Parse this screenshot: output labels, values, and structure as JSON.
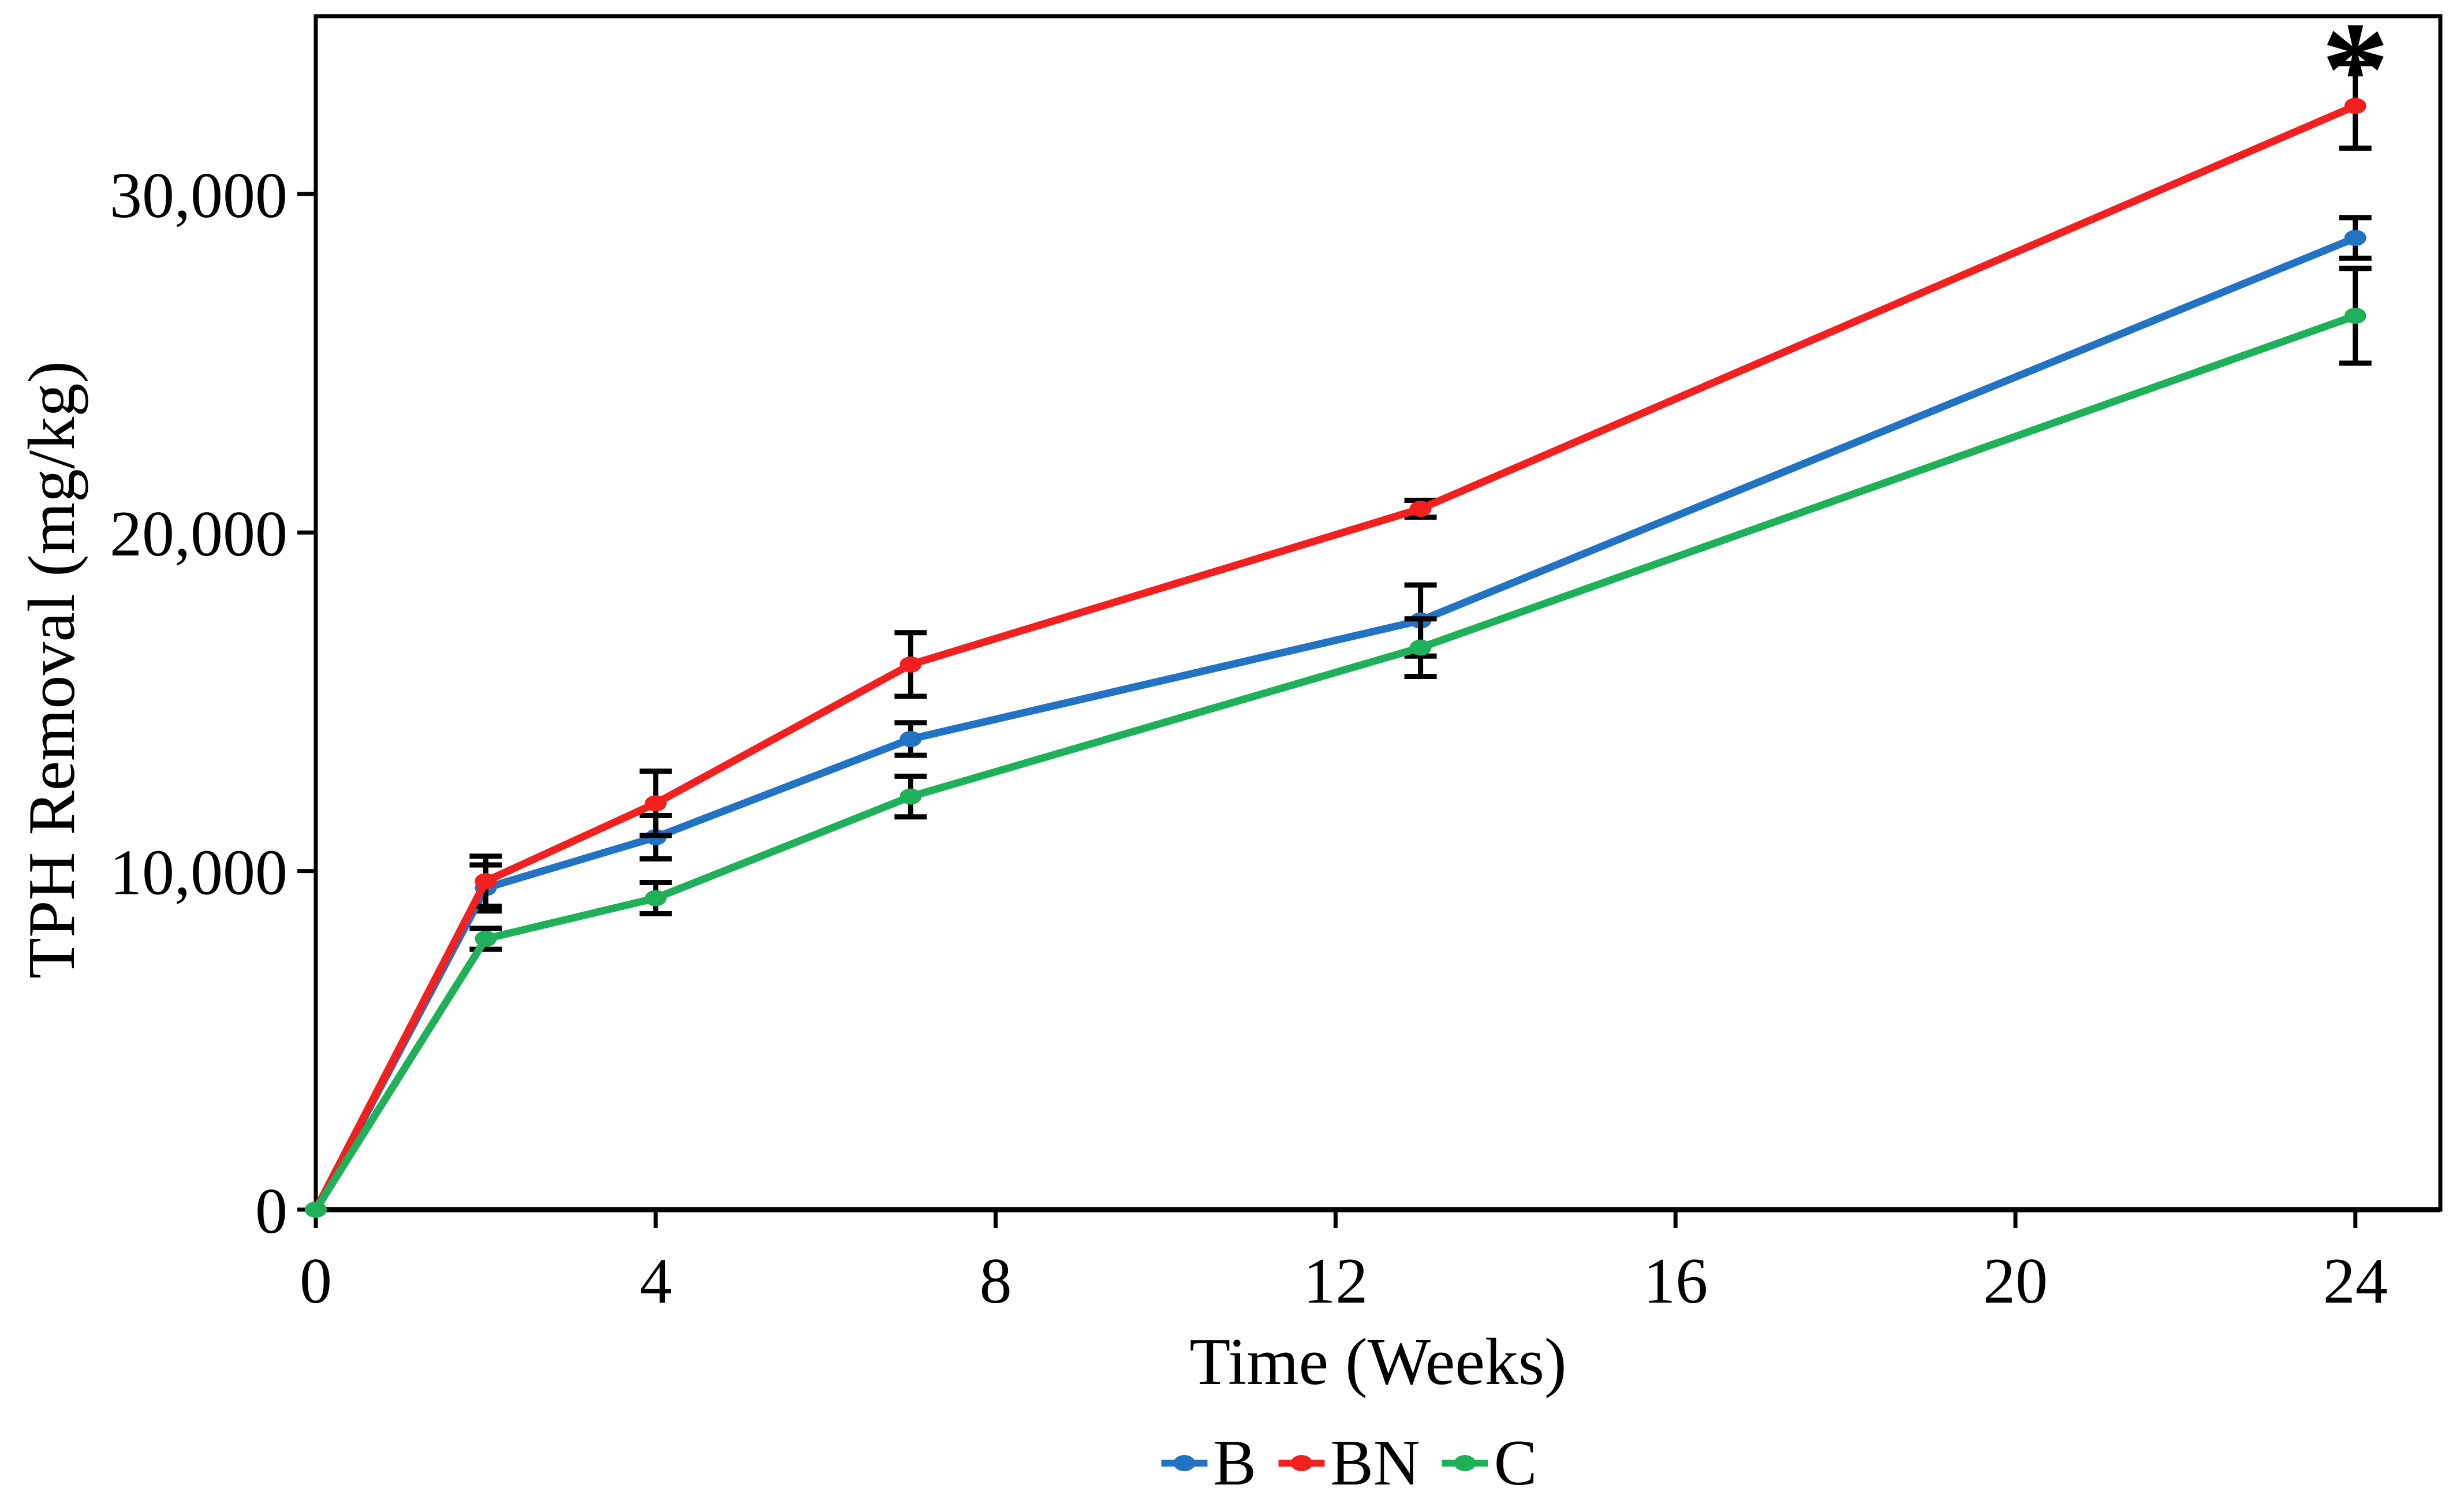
{
  "figure": {
    "background": "#FFFFFF",
    "frame_color": "#000000",
    "error_bar_color": "#000000"
  },
  "chart_data": {
    "type": "line",
    "title": "",
    "xlabel": "Time (Weeks)",
    "ylabel": "TPH Removal (mg/kg)",
    "x": [
      0,
      2,
      4,
      7,
      13,
      24
    ],
    "series": [
      {
        "name": "B",
        "color": "#2273C4",
        "values": [
          0,
          9500,
          11000,
          13900,
          17400,
          28700
        ],
        "error_bars": [
          0,
          680,
          640,
          480,
          1050,
          600
        ]
      },
      {
        "name": "BN",
        "color": "#F2201F",
        "values": [
          0,
          9700,
          12000,
          16100,
          20700,
          32600
        ],
        "error_bars": [
          0,
          740,
          950,
          940,
          250,
          1250
        ]
      },
      {
        "name": "C",
        "color": "#1FB05A",
        "values": [
          0,
          8000,
          9200,
          12200,
          16600,
          26400
        ],
        "error_bars": [
          0,
          310,
          460,
          600,
          850,
          1400
        ]
      }
    ],
    "xlim": [
      0,
      25
    ],
    "ylim": [
      0,
      35250
    ],
    "x_ticks": [
      0,
      4,
      8,
      12,
      16,
      20,
      24
    ],
    "x_tick_labels": [
      "0",
      "4",
      "8",
      "12",
      "16",
      "20",
      "24"
    ],
    "y_ticks": [
      0,
      10000,
      20000,
      30000
    ],
    "y_tick_labels": [
      "0",
      "10,000",
      "20,000",
      "30,000"
    ],
    "grid": false,
    "legend_position": "bottom-center",
    "annotation": {
      "text": "*",
      "x_week": 24,
      "y_value": 34300
    }
  }
}
